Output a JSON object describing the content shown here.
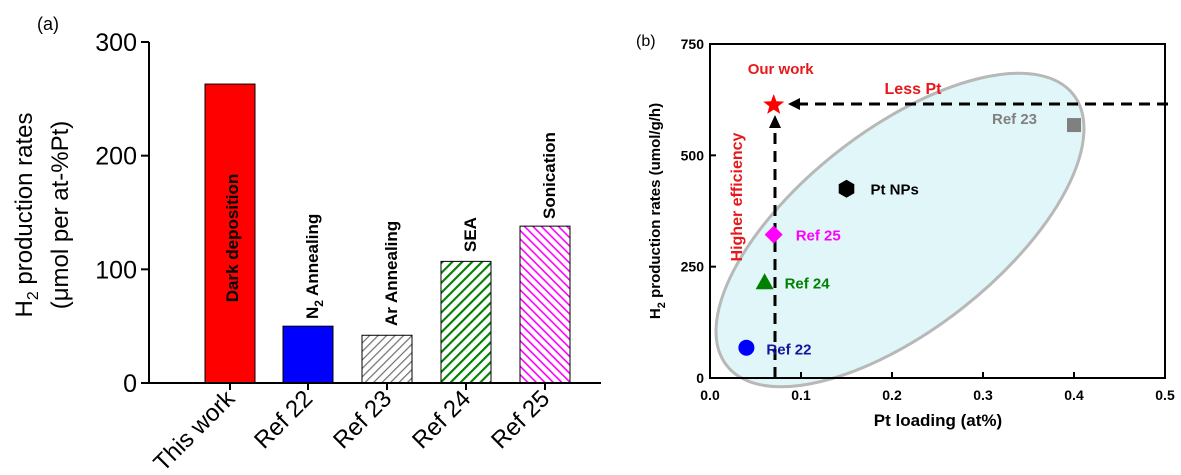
{
  "chart_data": [
    {
      "panel_label": "(a)",
      "type": "bar",
      "categories": [
        "This work",
        "Ref 22",
        "Ref 23",
        "Ref 24",
        "Ref 25"
      ],
      "values": [
        263,
        50,
        42,
        107,
        138
      ],
      "bar_labels": [
        "Dark deposition",
        "N2 Annealing",
        "Ar Annealing",
        "SEA",
        "Sonication"
      ],
      "bar_colors": [
        "#ff0000",
        "#0000ff",
        "#808080",
        "#008000",
        "#ff00ff"
      ],
      "bar_patterns": [
        "solid",
        "solid",
        "hatch",
        "hatch",
        "hatch"
      ],
      "ylabel": "H2 production rates (μmol per at-%Pt)",
      "ylabel_line1": "H",
      "ylabel_sub": "2",
      "ylabel_line1_rest": " production rates",
      "ylabel_line2": "(μmol per at-%Pt)",
      "ylim": [
        0,
        300
      ],
      "yticks": [
        "0",
        "100",
        "200",
        "300"
      ]
    },
    {
      "panel_label": "(b)",
      "type": "scatter",
      "xlabel": "Pt loading (at%)",
      "ylabel_main": "H",
      "ylabel_sub": "2",
      "ylabel_rest": " production rates (umol/g/h)",
      "xlim": [
        0,
        0.5
      ],
      "ylim": [
        0,
        750
      ],
      "xticks": [
        "0.0",
        "0.1",
        "0.2",
        "0.3",
        "0.4",
        "0.5"
      ],
      "yticks": [
        "0",
        "250",
        "500",
        "750"
      ],
      "points": [
        {
          "label": "Our work",
          "x": 0.07,
          "y": 613,
          "marker": "star",
          "color": "#ff0000"
        },
        {
          "label": "Ref 23",
          "x": 0.4,
          "y": 568,
          "marker": "square",
          "color": "#808080"
        },
        {
          "label": "Pt NPs",
          "x": 0.15,
          "y": 425,
          "marker": "hexagon",
          "color": "#000000"
        },
        {
          "label": "Ref 25",
          "x": 0.07,
          "y": 322,
          "marker": "diamond",
          "color": "#ff00ff"
        },
        {
          "label": "Ref 24",
          "x": 0.06,
          "y": 215,
          "marker": "triangle",
          "color": "#008000"
        },
        {
          "label": "Ref 22",
          "x": 0.04,
          "y": 68,
          "marker": "circle",
          "color": "#0000ff"
        }
      ],
      "annotations": {
        "less_pt": "Less Pt",
        "higher_efficiency": "Higher efficiency"
      },
      "ellipse_fill": "#e0f6f8",
      "ellipse_stroke": "#b8b8b8",
      "arrow_color": "#000000",
      "dashed_vertical_color": "#555555"
    }
  ]
}
